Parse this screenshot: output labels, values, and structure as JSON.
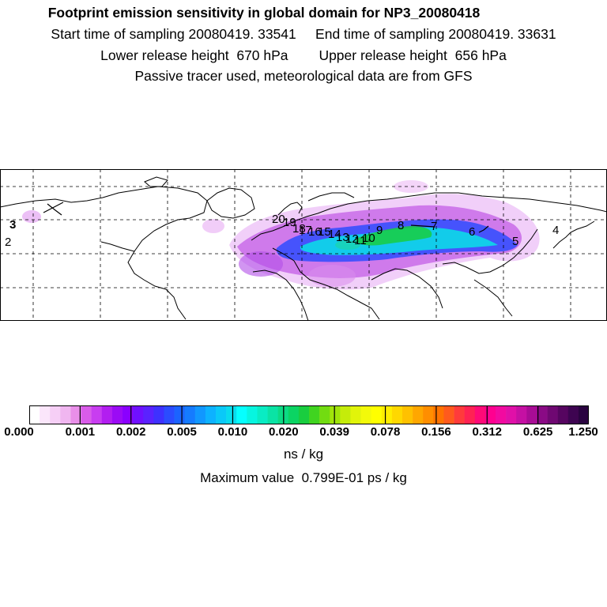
{
  "header": {
    "title": "Footprint emission sensitivity in global domain for NP3_20080418",
    "line1": "Start time of sampling 20080419. 33541     End time of sampling 20080419. 33631",
    "line2": "Lower release height  670 hPa        Upper release height  656 hPa",
    "line3": "Passive tracer used, meteorological data are from GFS"
  },
  "map": {
    "trajectory_labels": [
      "2",
      "3",
      "4",
      "5",
      "6",
      "7",
      "8",
      "9",
      "10",
      "11",
      "12",
      "13",
      "14",
      "15",
      "16",
      "17",
      "18",
      "19",
      "20"
    ],
    "colors": {
      "land_outline": "#000000",
      "gridline": "#000000",
      "background": "#ffffff"
    }
  },
  "colorbar": {
    "tick_labels": [
      "0.000",
      "0.001",
      "0.002",
      "0.005",
      "0.010",
      "0.020",
      "0.039",
      "0.078",
      "0.156",
      "0.312",
      "0.625",
      "1.250"
    ],
    "colors": [
      "#ffffff",
      "#fbe6fb",
      "#f6cff6",
      "#f0b6f0",
      "#e98fe9",
      "#d95ce9",
      "#c83df0",
      "#b21ef0",
      "#9b0bf5",
      "#8a00ff",
      "#6f10ff",
      "#5a22ff",
      "#3e31ff",
      "#2b4cff",
      "#1b63ff",
      "#157bff",
      "#1197ff",
      "#0db2ff",
      "#0ac9f8",
      "#08dcee",
      "#05ffff",
      "#07f5e0",
      "#09ecc4",
      "#0ae3a5",
      "#0cdb84",
      "#0bd463",
      "#19cd3f",
      "#40d420",
      "#72dc11",
      "#a0e40a",
      "#c5ec0a",
      "#e1f40a",
      "#f3fa0a",
      "#ffff00",
      "#ffee00",
      "#ffd800",
      "#ffc100",
      "#ffa700",
      "#ff8e00",
      "#ff7300",
      "#ff5a1d",
      "#ff3b3b",
      "#ff2253",
      "#ff0a77",
      "#ff0090",
      "#f20aa0",
      "#e010a8",
      "#c510a3",
      "#a80c95",
      "#8a0a85",
      "#6f0872",
      "#560560",
      "#3e0451",
      "#2a0340"
    ],
    "units": "ns / kg",
    "max_value_text": "Maximum value  0.799E-01 ps / kg"
  }
}
